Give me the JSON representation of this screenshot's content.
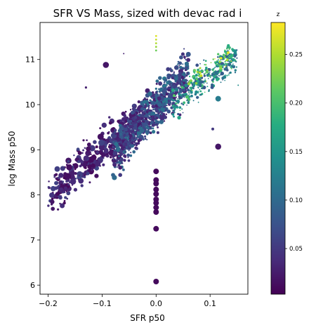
{
  "chart_data": {
    "type": "scatter",
    "title": "SFR VS Mass, sized with devac rad i",
    "xlabel": "SFR p50",
    "ylabel": "log Mass p50",
    "xlim": [
      -0.215,
      0.17
    ],
    "ylim": [
      5.8,
      11.82
    ],
    "xticks": [
      -0.2,
      -0.1,
      0.0,
      0.1
    ],
    "xtick_labels": [
      "−0.2",
      "−0.1",
      "0.0",
      "0.1"
    ],
    "yticks": [
      6,
      7,
      8,
      9,
      10,
      11
    ],
    "ytick_labels": [
      "6",
      "7",
      "8",
      "9",
      "10",
      "11"
    ],
    "grid": false,
    "colorbar": {
      "label": "z",
      "colormap": "viridis",
      "range": [
        0.003,
        0.283
      ],
      "ticks": [
        0.05,
        0.1,
        0.15,
        0.2,
        0.25
      ],
      "tick_labels": [
        "0.05",
        "0.10",
        "0.15",
        "0.20",
        "0.25"
      ]
    },
    "encoding": {
      "color": "z",
      "size": "devac rad i"
    },
    "clusters": [
      {
        "x_range": [
          -0.2,
          -0.02
        ],
        "y_trend": [
          7.95,
          9.85
        ],
        "y_spread": 0.38,
        "count": 380,
        "z_range": [
          0.005,
          0.06
        ],
        "size_range": [
          1.2,
          4.6
        ]
      },
      {
        "x_range": [
          -0.08,
          0.06
        ],
        "y_trend": [
          8.9,
          10.7
        ],
        "y_spread": 0.42,
        "count": 820,
        "z_range": [
          0.02,
          0.11
        ],
        "size_range": [
          1.0,
          3.6
        ]
      },
      {
        "x_range": [
          0.03,
          0.15
        ],
        "y_trend": [
          10.0,
          11.1
        ],
        "y_spread": 0.3,
        "count": 320,
        "z_range": [
          0.07,
          0.21
        ],
        "size_range": [
          0.8,
          2.8
        ]
      },
      {
        "x_range": [
          0.06,
          0.14
        ],
        "y_trend": [
          10.5,
          11.15
        ],
        "y_spread": 0.18,
        "count": 80,
        "z_range": [
          0.17,
          0.27
        ],
        "size_range": [
          0.8,
          2.2
        ]
      }
    ],
    "column_points": {
      "x": 0.0,
      "y": [
        6.08,
        7.25,
        7.62,
        7.72,
        7.82,
        7.9,
        8.02,
        8.12,
        8.25,
        8.33,
        8.52
      ],
      "z": 0.01,
      "size": 4.0
    },
    "top_points": {
      "x": [
        0.0,
        0.0,
        0.0,
        0.0,
        0.0
      ],
      "y": [
        11.52,
        11.44,
        11.36,
        11.28,
        11.2
      ],
      "z": [
        0.27,
        0.26,
        0.25,
        0.24,
        0.22
      ],
      "size": 1.4
    },
    "outliers": [
      {
        "x": -0.093,
        "y": 10.88,
        "z": 0.02,
        "size": 4.3
      },
      {
        "x": -0.13,
        "y": 10.38,
        "z": 0.03,
        "size": 1.6
      },
      {
        "x": -0.185,
        "y": 8.45,
        "z": 0.01,
        "size": 2.0
      },
      {
        "x": 0.115,
        "y": 9.07,
        "z": 0.02,
        "size": 4.3
      },
      {
        "x": 0.115,
        "y": 10.13,
        "z": 0.12,
        "size": 4.0
      },
      {
        "x": 0.152,
        "y": 10.43,
        "z": 0.14,
        "size": 1.0
      },
      {
        "x": -0.06,
        "y": 11.13,
        "z": 0.03,
        "size": 1.0
      },
      {
        "x": 0.105,
        "y": 9.46,
        "z": 0.05,
        "size": 2.0
      }
    ]
  }
}
